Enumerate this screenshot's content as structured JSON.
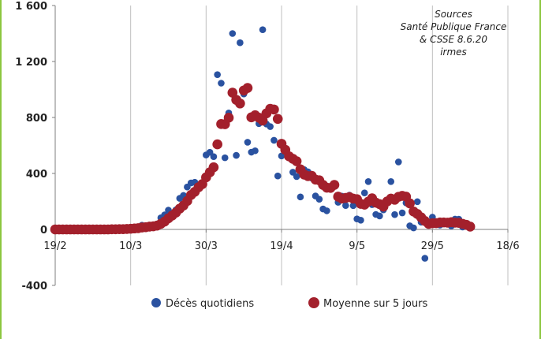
{
  "chart_data": {
    "type": "scatter",
    "title": "",
    "xlabel": "",
    "ylabel": "",
    "ylim": [
      -400,
      1600
    ],
    "yticks": [
      1600,
      1200,
      800,
      400,
      0,
      -400
    ],
    "ytick_labels": [
      "1 600",
      "1 200",
      "800",
      "400",
      "0",
      "-400"
    ],
    "xlim": [
      "2020-02-19",
      "2020-06-18"
    ],
    "xticks": [
      "2020-02-19",
      "2020-03-10",
      "2020-03-30",
      "2020-04-19",
      "2020-05-09",
      "2020-05-29",
      "2020-06-18"
    ],
    "xtick_labels": [
      "19/2",
      "10/3",
      "30/3",
      "19/4",
      "9/5",
      "29/5",
      "18/6"
    ],
    "grid": "vertical",
    "legend": "bottom",
    "annotation": [
      "Sources",
      "Santé Publique France",
      "& CSSE 8.6.20",
      "irmes"
    ],
    "series": [
      {
        "name": "Décès quotidiens",
        "color": "#2a52a0",
        "x": [
          "2020-02-19",
          "2020-02-20",
          "2020-02-21",
          "2020-02-22",
          "2020-02-23",
          "2020-02-24",
          "2020-02-25",
          "2020-02-26",
          "2020-02-27",
          "2020-02-28",
          "2020-02-29",
          "2020-03-01",
          "2020-03-02",
          "2020-03-03",
          "2020-03-04",
          "2020-03-05",
          "2020-03-06",
          "2020-03-07",
          "2020-03-08",
          "2020-03-09",
          "2020-03-10",
          "2020-03-11",
          "2020-03-12",
          "2020-03-13",
          "2020-03-14",
          "2020-03-15",
          "2020-03-16",
          "2020-03-17",
          "2020-03-18",
          "2020-03-19",
          "2020-03-20",
          "2020-03-21",
          "2020-03-22",
          "2020-03-23",
          "2020-03-24",
          "2020-03-25",
          "2020-03-26",
          "2020-03-27",
          "2020-03-28",
          "2020-03-29",
          "2020-03-30",
          "2020-03-31",
          "2020-04-01",
          "2020-04-02",
          "2020-04-03",
          "2020-04-04",
          "2020-04-05",
          "2020-04-06",
          "2020-04-07",
          "2020-04-08",
          "2020-04-09",
          "2020-04-10",
          "2020-04-11",
          "2020-04-12",
          "2020-04-13",
          "2020-04-14",
          "2020-04-15",
          "2020-04-16",
          "2020-04-17",
          "2020-04-18",
          "2020-04-19",
          "2020-04-20",
          "2020-04-21",
          "2020-04-22",
          "2020-04-23",
          "2020-04-24",
          "2020-04-25",
          "2020-04-26",
          "2020-04-27",
          "2020-04-28",
          "2020-04-29",
          "2020-04-30",
          "2020-05-01",
          "2020-05-02",
          "2020-05-03",
          "2020-05-04",
          "2020-05-05",
          "2020-05-06",
          "2020-05-07",
          "2020-05-08",
          "2020-05-09",
          "2020-05-10",
          "2020-05-11",
          "2020-05-12",
          "2020-05-13",
          "2020-05-14",
          "2020-05-15",
          "2020-05-16",
          "2020-05-17",
          "2020-05-18",
          "2020-05-19",
          "2020-05-20",
          "2020-05-21",
          "2020-05-22",
          "2020-05-23",
          "2020-05-24",
          "2020-05-25",
          "2020-05-26",
          "2020-05-27",
          "2020-05-28",
          "2020-05-29",
          "2020-05-30",
          "2020-05-31",
          "2020-06-01",
          "2020-06-02",
          "2020-06-03",
          "2020-06-04",
          "2020-06-05",
          "2020-06-06",
          "2020-06-07",
          "2020-06-08"
        ],
        "y": [
          0,
          0,
          0,
          0,
          0,
          0,
          0,
          0,
          0,
          0,
          0,
          1,
          0,
          1,
          0,
          2,
          4,
          1,
          2,
          5,
          10,
          14,
          13,
          30,
          12,
          29,
          25,
          39,
          83,
          104,
          138,
          109,
          140,
          222,
          243,
          303,
          332,
          337,
          319,
          326,
          532,
          551,
          520,
          1106,
          1045,
          512,
          832,
          1400,
          529,
          1334,
          968,
          623,
          552,
          562,
          756,
          1427,
          753,
          735,
          637,
          382,
          525,
          545,
          531,
          409,
          378,
          232,
          427,
          412,
          367,
          239,
          216,
          146,
          133,
          300,
          314,
          194,
          238,
          171,
          245,
          170,
          75,
          66,
          261,
          342,
          177,
          107,
          96,
          140,
          202,
          342,
          106,
          482,
          118,
          190,
          26,
          11,
          198,
          52,
          -206,
          53,
          88,
          52,
          31,
          56,
          50,
          25,
          74,
          73,
          17,
          40,
          13
        ]
      },
      {
        "name": "Moyenne sur 5 jours",
        "color": "#a3202c",
        "x": [
          "2020-02-19",
          "2020-02-20",
          "2020-02-21",
          "2020-02-22",
          "2020-02-23",
          "2020-02-24",
          "2020-02-25",
          "2020-02-26",
          "2020-02-27",
          "2020-02-28",
          "2020-02-29",
          "2020-03-01",
          "2020-03-02",
          "2020-03-03",
          "2020-03-04",
          "2020-03-05",
          "2020-03-06",
          "2020-03-07",
          "2020-03-08",
          "2020-03-09",
          "2020-03-10",
          "2020-03-11",
          "2020-03-12",
          "2020-03-13",
          "2020-03-14",
          "2020-03-15",
          "2020-03-16",
          "2020-03-17",
          "2020-03-18",
          "2020-03-19",
          "2020-03-20",
          "2020-03-21",
          "2020-03-22",
          "2020-03-23",
          "2020-03-24",
          "2020-03-25",
          "2020-03-26",
          "2020-03-27",
          "2020-03-28",
          "2020-03-29",
          "2020-03-30",
          "2020-03-31",
          "2020-04-01",
          "2020-04-02",
          "2020-04-03",
          "2020-04-04",
          "2020-04-05",
          "2020-04-06",
          "2020-04-07",
          "2020-04-08",
          "2020-04-09",
          "2020-04-10",
          "2020-04-11",
          "2020-04-12",
          "2020-04-13",
          "2020-04-14",
          "2020-04-15",
          "2020-04-16",
          "2020-04-17",
          "2020-04-18",
          "2020-04-19",
          "2020-04-20",
          "2020-04-21",
          "2020-04-22",
          "2020-04-23",
          "2020-04-24",
          "2020-04-25",
          "2020-04-26",
          "2020-04-27",
          "2020-04-28",
          "2020-04-29",
          "2020-04-30",
          "2020-05-01",
          "2020-05-02",
          "2020-05-03",
          "2020-05-04",
          "2020-05-05",
          "2020-05-06",
          "2020-05-07",
          "2020-05-08",
          "2020-05-09",
          "2020-05-10",
          "2020-05-11",
          "2020-05-12",
          "2020-05-13",
          "2020-05-14",
          "2020-05-15",
          "2020-05-16",
          "2020-05-17",
          "2020-05-18",
          "2020-05-19",
          "2020-05-20",
          "2020-05-21",
          "2020-05-22",
          "2020-05-23",
          "2020-05-24",
          "2020-05-25",
          "2020-05-26",
          "2020-05-27",
          "2020-05-28",
          "2020-05-29",
          "2020-05-30",
          "2020-05-31",
          "2020-06-01",
          "2020-06-02",
          "2020-06-03",
          "2020-06-04",
          "2020-06-05",
          "2020-06-06",
          "2020-06-07",
          "2020-06-08"
        ],
        "y": [
          0,
          0,
          0,
          0,
          0,
          0,
          0,
          0,
          0,
          0,
          0,
          0,
          0,
          0,
          0,
          1,
          1,
          2,
          2,
          3,
          5,
          7,
          9,
          14,
          16,
          20,
          22,
          27,
          40,
          56,
          79,
          99,
          120,
          148,
          171,
          203,
          246,
          269,
          301,
          324,
          372,
          408,
          444,
          608,
          753,
          752,
          798,
          977,
          926,
          900,
          993,
          1011,
          801,
          816,
          798,
          778,
          829,
          862,
          857,
          790,
          612,
          569,
          522,
          505,
          487,
          429,
          392,
          381,
          383,
          356,
          351,
          318,
          298,
          297,
          318,
          234,
          221,
          225,
          231,
          220,
          216,
          183,
          177,
          198,
          222,
          191,
          181,
          163,
          200,
          220,
          212,
          233,
          240,
          234,
          186,
          128,
          110,
          86,
          60,
          40,
          44,
          45,
          50,
          50,
          48,
          52,
          48,
          47,
          40,
          33,
          20
        ]
      }
    ]
  }
}
